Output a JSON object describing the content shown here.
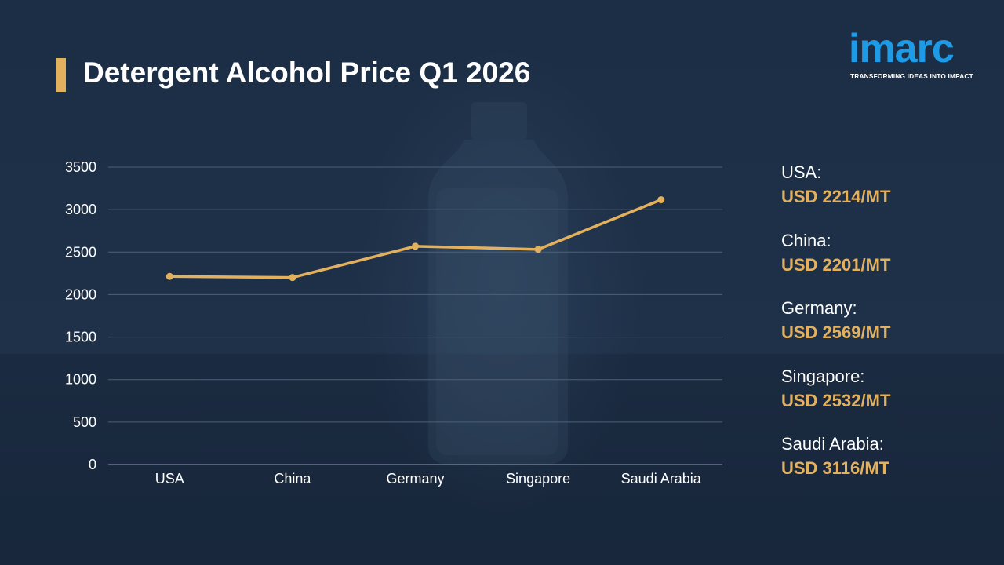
{
  "title": "Detergent Alcohol Price Q1 2026",
  "logo": {
    "name": "imarc",
    "tagline": "TRANSFORMING IDEAS INTO IMPACT"
  },
  "colors": {
    "accent": "#e3b15e",
    "logo_blue": "#1e9be6",
    "background": "#1e3048",
    "text": "#ffffff"
  },
  "chart_data": {
    "type": "line",
    "categories": [
      "USA",
      "China",
      "Germany",
      "Singapore",
      "Saudi Arabia"
    ],
    "series": [
      {
        "values": [
          2214,
          2201,
          2569,
          2532,
          3116
        ]
      }
    ],
    "yticks": [
      "0",
      "500",
      "1000",
      "1500",
      "2000",
      "2500",
      "3000",
      "3500"
    ],
    "ylim": [
      0,
      3500
    ],
    "grid": true,
    "color": "#e3b15e"
  },
  "legend": [
    {
      "country": "USA:",
      "price": "USD 2214/MT"
    },
    {
      "country": "China:",
      "price": "USD 2201/MT"
    },
    {
      "country": "Germany:",
      "price": "USD 2569/MT"
    },
    {
      "country": "Singapore:",
      "price": "USD 2532/MT"
    },
    {
      "country": "Saudi Arabia:",
      "price": "USD 3116/MT"
    }
  ]
}
